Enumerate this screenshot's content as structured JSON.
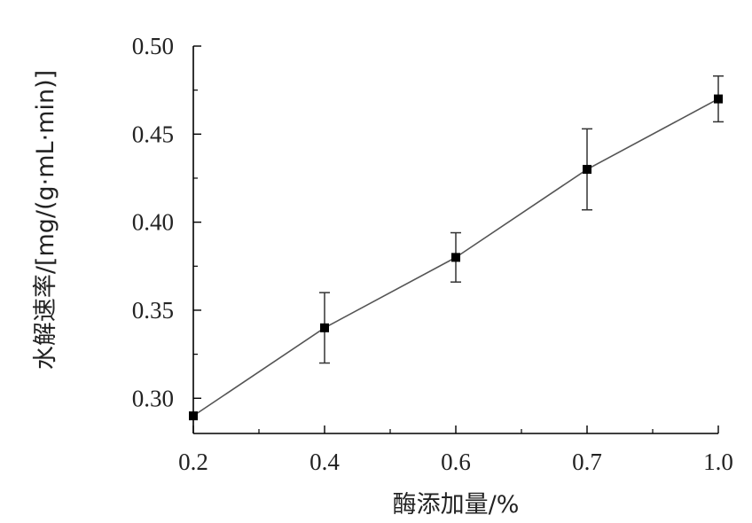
{
  "chart_data": {
    "type": "line",
    "title": "",
    "xlabel": "酶添加量/%",
    "ylabel": "水解速率/[mg/(g·mL·min)]",
    "x_tick_labels": [
      "0.2",
      "0.4",
      "0.6",
      "0.7",
      "1.0"
    ],
    "y_tick_labels": [
      "0.30",
      "0.35",
      "0.40",
      "0.45",
      "0.50"
    ],
    "ylim": [
      0.28,
      0.5
    ],
    "grid": false,
    "series": [
      {
        "x": [
          "0.2",
          "0.4",
          "0.6",
          "0.7",
          "1.0"
        ],
        "values": [
          0.29,
          0.34,
          0.38,
          0.43,
          0.47
        ],
        "error": [
          0.0,
          0.02,
          0.014,
          0.023,
          0.013
        ]
      }
    ],
    "colors": {
      "line": "#555555",
      "marker": "#000000",
      "axis": "#000000"
    }
  }
}
